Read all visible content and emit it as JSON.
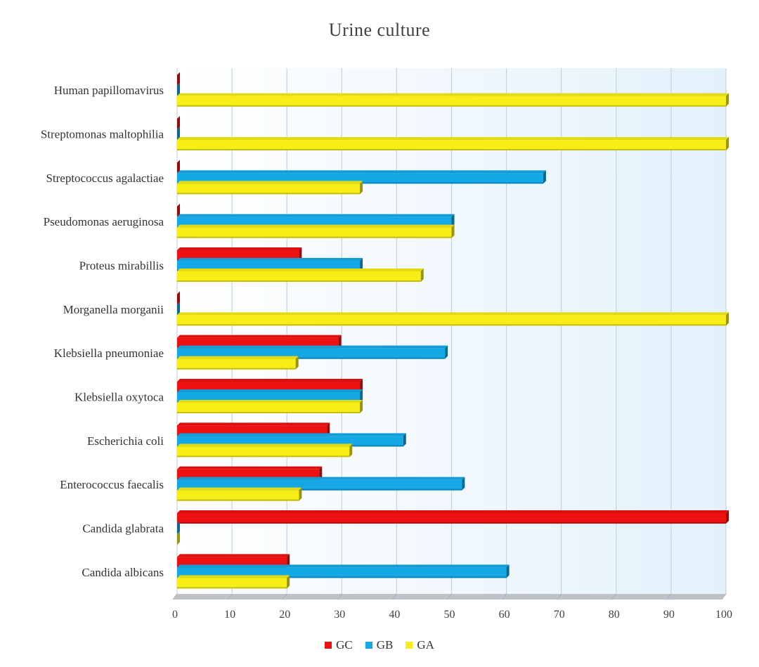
{
  "chart_data": {
    "type": "bar",
    "orientation": "horizontal",
    "title": "Urine culture",
    "xlabel": "",
    "ylabel": "",
    "xlim": [
      0,
      100
    ],
    "x_ticks": [
      0,
      10,
      20,
      30,
      40,
      50,
      60,
      70,
      80,
      90,
      100
    ],
    "grid": true,
    "legend_position": "bottom",
    "categories": [
      "Human papillomavirus",
      "Streptomonas maltophilia",
      "Streptococcus agalactiae",
      "Pseudomonas aeruginosa",
      "Proteus mirabillis",
      "Morganella morganii",
      "Klebsiella pneumoniae",
      "Klebsiella oxytoca",
      "Escherichia coli",
      "Enterococcus faecalis",
      "Candida glabrata",
      "Candida albicans"
    ],
    "series": [
      {
        "name": "GC",
        "color": "#ee1111",
        "values": [
          0,
          0,
          0,
          0,
          22.2,
          0,
          29.4,
          33.3,
          27.3,
          25.9,
          100,
          20
        ]
      },
      {
        "name": "GB",
        "color": "#14a8e6",
        "values": [
          0,
          0,
          66.7,
          50,
          33.3,
          0,
          48.8,
          33.3,
          41.2,
          51.9,
          0,
          60
        ]
      },
      {
        "name": "GA",
        "color": "#f6ee16",
        "values": [
          100,
          100,
          33.3,
          50,
          44.4,
          100,
          21.6,
          33.3,
          31.4,
          22.2,
          0,
          20
        ]
      }
    ]
  }
}
